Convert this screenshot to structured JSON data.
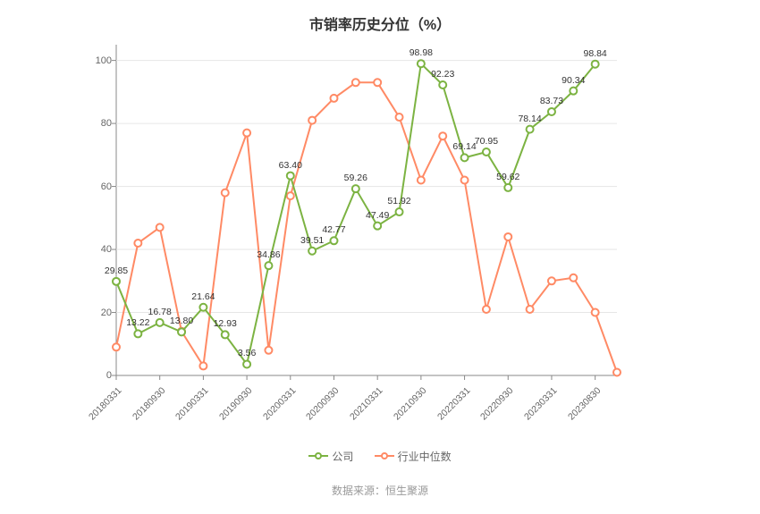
{
  "title": "市销率历史分位（%）",
  "source_label": "数据来源：恒生聚源",
  "legend": {
    "company": "公司",
    "industry": "行业中位数"
  },
  "chart": {
    "type": "line",
    "ylim": [
      0,
      105
    ],
    "yticks": [
      0,
      20,
      40,
      60,
      80,
      100
    ],
    "grid_color": "#e6e6e6",
    "axis_color": "#888888",
    "background_color": "#ffffff",
    "series": {
      "company": {
        "color": "#7cb342",
        "line_width": 2,
        "marker_radius": 4,
        "marker_fill": "#ffffff",
        "values": [
          29.85,
          13.22,
          16.78,
          13.8,
          21.64,
          12.93,
          3.56,
          34.86,
          63.4,
          39.51,
          42.77,
          59.26,
          47.49,
          51.92,
          98.98,
          92.23,
          69.14,
          70.95,
          59.62,
          78.14,
          83.73,
          90.34,
          98.84
        ],
        "labels_show": true
      },
      "industry": {
        "color": "#ff8a65",
        "line_width": 2,
        "marker_radius": 4,
        "marker_fill": "#ffffff",
        "values": [
          9,
          42,
          47,
          14,
          3,
          58,
          77,
          8,
          57,
          81,
          88,
          93,
          93,
          82,
          62,
          76,
          62,
          21,
          44,
          21,
          30,
          31,
          20,
          1
        ],
        "labels_show": false
      }
    },
    "x_tick_labels": [
      "20180331",
      "20180930",
      "20190331",
      "20190930",
      "20200331",
      "20200930",
      "20210331",
      "20210930",
      "20220331",
      "20220930",
      "20230331",
      "20230830"
    ],
    "x_tick_every": 2,
    "n_points_industry": 24,
    "n_points_company": 23,
    "title_fontsize": 16,
    "label_fontsize": 11
  }
}
